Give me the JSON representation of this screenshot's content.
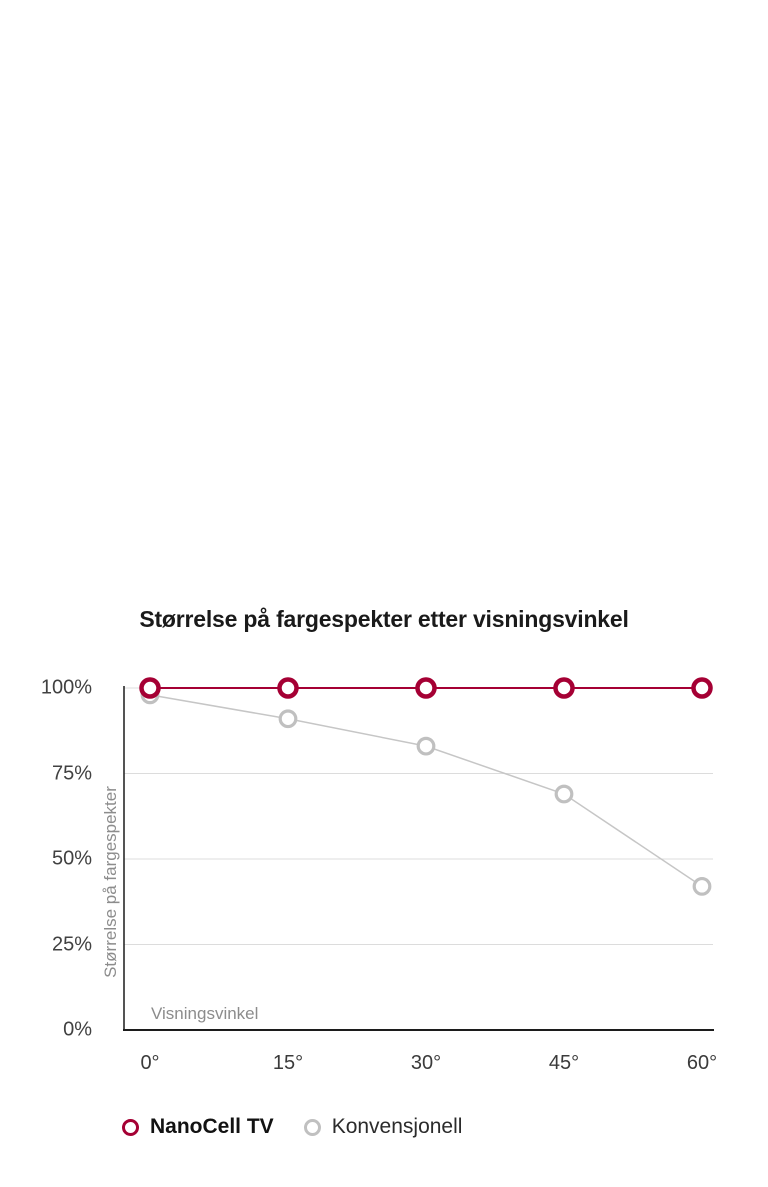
{
  "page": {
    "background": "#ffffff"
  },
  "chart_data": {
    "type": "line",
    "title": "Størrelse på fargespekter etter visningsvinkel",
    "xlabel": "Visningsvinkel",
    "ylabel": "Størrelse på fargespekter",
    "categories": [
      "0°",
      "15°",
      "30°",
      "45°",
      "60°"
    ],
    "x_values_degrees": [
      0,
      15,
      30,
      45,
      60
    ],
    "y_tick_labels": [
      "100%",
      "75%",
      "50%",
      "25%",
      "0%"
    ],
    "y_tick_values": [
      100,
      75,
      50,
      25,
      0
    ],
    "ylim": [
      0,
      100
    ],
    "grid": "horizontal-only",
    "legend_position": "bottom-left",
    "series": [
      {
        "name": "NanoCell TV",
        "values": [
          100,
          100,
          100,
          100,
          100
        ],
        "color": "#a50034",
        "marker": "open-circle"
      },
      {
        "name": "Konvensjonell",
        "values": [
          98,
          91,
          83,
          69,
          42
        ],
        "color": "#c0c0c0",
        "marker": "open-circle"
      }
    ]
  },
  "colors": {
    "accent": "#a50034",
    "series_gray": "#c0c0c0",
    "gray_line": "#c6c6c6",
    "grid": "#dcdcdc",
    "axis": "#1c1c1c",
    "title_text": "#1a1a1a",
    "tick_text": "#3b3b3b",
    "muted_text": "#8c8c8c"
  }
}
